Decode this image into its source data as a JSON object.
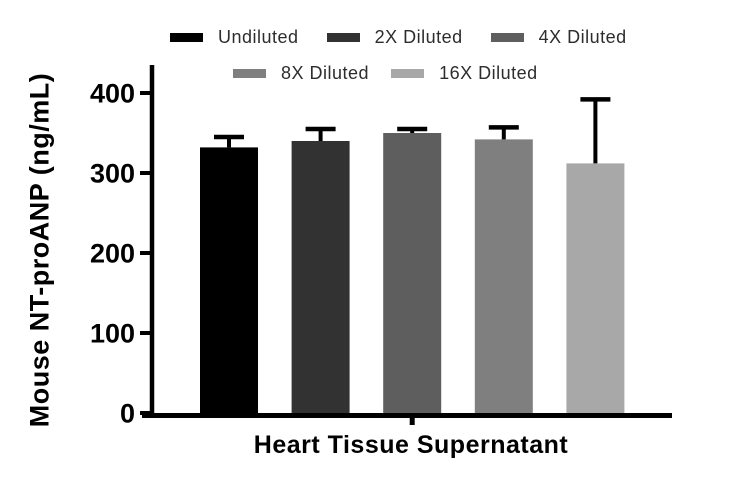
{
  "chart_data": {
    "type": "bar",
    "title": "",
    "categories": [
      "Heart Tissue Supernatant"
    ],
    "series": [
      {
        "name": "Undiluted",
        "color": "#000000",
        "values": [
          332
        ],
        "sd": [
          13
        ]
      },
      {
        "name": "2X Diluted",
        "color": "#323232",
        "values": [
          340
        ],
        "sd": [
          15
        ]
      },
      {
        "name": "4X Diluted",
        "color": "#5e5e5e",
        "values": [
          350
        ],
        "sd": [
          5
        ]
      },
      {
        "name": "8X Diluted",
        "color": "#7f7f7f",
        "values": [
          342
        ],
        "sd": [
          15
        ]
      },
      {
        "name": "16X Diluted",
        "color": "#a8a8a8",
        "values": [
          312
        ],
        "sd": [
          80
        ]
      }
    ],
    "ylabel": "Mouse NT-proANP (ng/mL)",
    "ylim": [
      0,
      435
    ],
    "yticks": [
      0,
      100,
      200,
      300,
      400
    ],
    "grid": false,
    "legend_position": "top",
    "error_bars": "upper SD only",
    "axis_color": "#000000"
  }
}
